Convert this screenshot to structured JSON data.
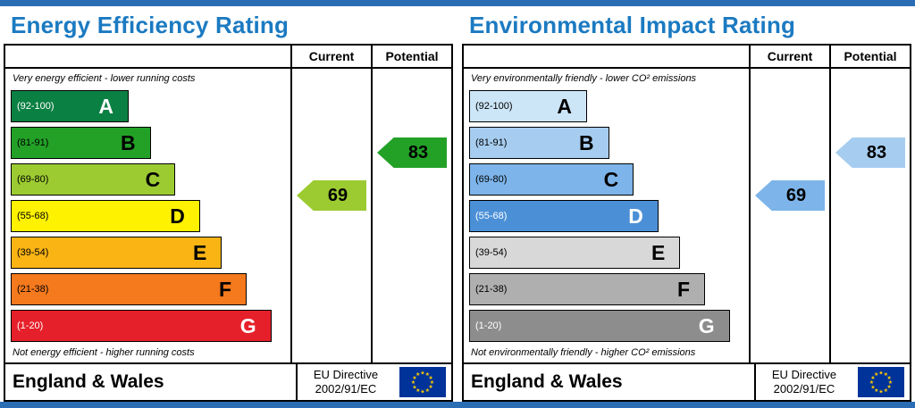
{
  "colors": {
    "frame": "#2a6db5",
    "title": "#1b7ac1",
    "table_border": "#000000"
  },
  "eu_flag": {
    "field": "#003399",
    "stars": "#ffcc00"
  },
  "charts": [
    {
      "title": "Energy Efficiency Rating",
      "columns": {
        "current": "Current",
        "potential": "Potential"
      },
      "top_note": "Very energy efficient - lower running costs",
      "bottom_note": "Not energy efficient - higher running costs",
      "bands": [
        {
          "letter": "A",
          "range": "(92-100)",
          "min": 92,
          "max": 100,
          "color": "#0b8043",
          "text_color": "#ffffff",
          "width_pct": 43
        },
        {
          "letter": "B",
          "range": "(81-91)",
          "min": 81,
          "max": 91,
          "color": "#23a127",
          "text_color": "#000000",
          "width_pct": 51
        },
        {
          "letter": "C",
          "range": "(69-80)",
          "min": 69,
          "max": 80,
          "color": "#9ccb31",
          "text_color": "#000000",
          "width_pct": 60
        },
        {
          "letter": "D",
          "range": "(55-68)",
          "min": 55,
          "max": 68,
          "color": "#fef200",
          "text_color": "#000000",
          "width_pct": 69
        },
        {
          "letter": "E",
          "range": "(39-54)",
          "min": 39,
          "max": 54,
          "color": "#fab414",
          "text_color": "#000000",
          "width_pct": 77
        },
        {
          "letter": "F",
          "range": "(21-38)",
          "min": 21,
          "max": 38,
          "color": "#f5791d",
          "text_color": "#000000",
          "width_pct": 86
        },
        {
          "letter": "G",
          "range": "(1-20)",
          "min": 1,
          "max": 20,
          "color": "#e6202a",
          "text_color": "#ffffff",
          "width_pct": 95
        }
      ],
      "current": {
        "label": "Current",
        "value": 69,
        "band": "C",
        "color": "#9ccb31"
      },
      "potential": {
        "label": "Potential",
        "value": 83,
        "band": "B",
        "color": "#23a127"
      },
      "footer": {
        "region": "England & Wales",
        "directive_line1": "EU Directive",
        "directive_line2": "2002/91/EC"
      }
    },
    {
      "title": "Environmental Impact Rating",
      "columns": {
        "current": "Current",
        "potential": "Potential"
      },
      "top_note": "Very environmentally friendly - lower CO² emissions",
      "bottom_note": "Not environmentally friendly - higher CO² emissions",
      "bands": [
        {
          "letter": "A",
          "range": "(92-100)",
          "min": 92,
          "max": 100,
          "color": "#cce5f7",
          "text_color": "#000000",
          "width_pct": 43
        },
        {
          "letter": "B",
          "range": "(81-91)",
          "min": 81,
          "max": 91,
          "color": "#a6cdf0",
          "text_color": "#000000",
          "width_pct": 51
        },
        {
          "letter": "C",
          "range": "(69-80)",
          "min": 69,
          "max": 80,
          "color": "#7db4e9",
          "text_color": "#000000",
          "width_pct": 60
        },
        {
          "letter": "D",
          "range": "(55-68)",
          "min": 55,
          "max": 68,
          "color": "#4b90d7",
          "text_color": "#ffffff",
          "width_pct": 69
        },
        {
          "letter": "E",
          "range": "(39-54)",
          "min": 39,
          "max": 54,
          "color": "#d8d8d8",
          "text_color": "#000000",
          "width_pct": 77
        },
        {
          "letter": "F",
          "range": "(21-38)",
          "min": 21,
          "max": 38,
          "color": "#afafaf",
          "text_color": "#000000",
          "width_pct": 86
        },
        {
          "letter": "G",
          "range": "(1-20)",
          "min": 1,
          "max": 20,
          "color": "#8d8d8d",
          "text_color": "#ffffff",
          "width_pct": 95
        }
      ],
      "current": {
        "label": "Current",
        "value": 69,
        "band": "C",
        "color": "#7db4e9"
      },
      "potential": {
        "label": "Potential",
        "value": 83,
        "band": "B",
        "color": "#a6cdf0"
      },
      "footer": {
        "region": "England & Wales",
        "directive_line1": "EU Directive",
        "directive_line2": "2002/91/EC"
      }
    }
  ],
  "chart_data": [
    {
      "type": "bar",
      "subtype": "epc-rating",
      "title": "Energy Efficiency Rating",
      "categories": [
        "A (92-100)",
        "B (81-91)",
        "C (69-80)",
        "D (55-68)",
        "E (39-54)",
        "F (21-38)",
        "G (1-20)"
      ],
      "band_bar_relative_widths_pct": [
        43,
        51,
        60,
        69,
        77,
        86,
        95
      ],
      "series": [
        {
          "name": "Current",
          "values": [
            69
          ],
          "band": "C"
        },
        {
          "name": "Potential",
          "values": [
            83
          ],
          "band": "B"
        }
      ],
      "scale": [
        1,
        100
      ],
      "annotation_top": "Very energy efficient - lower running costs",
      "annotation_bottom": "Not energy efficient - higher running costs",
      "footer_text": "England & Wales | EU Directive 2002/91/EC"
    },
    {
      "type": "bar",
      "subtype": "epc-rating",
      "title": "Environmental Impact Rating",
      "categories": [
        "A (92-100)",
        "B (81-91)",
        "C (69-80)",
        "D (55-68)",
        "E (39-54)",
        "F (21-38)",
        "G (1-20)"
      ],
      "band_bar_relative_widths_pct": [
        43,
        51,
        60,
        69,
        77,
        86,
        95
      ],
      "series": [
        {
          "name": "Current",
          "values": [
            69
          ],
          "band": "C"
        },
        {
          "name": "Potential",
          "values": [
            83
          ],
          "band": "B"
        }
      ],
      "scale": [
        1,
        100
      ],
      "annotation_top": "Very environmentally friendly - lower CO² emissions",
      "annotation_bottom": "Not environmentally friendly - higher CO² emissions",
      "footer_text": "England & Wales | EU Directive 2002/91/EC"
    }
  ]
}
